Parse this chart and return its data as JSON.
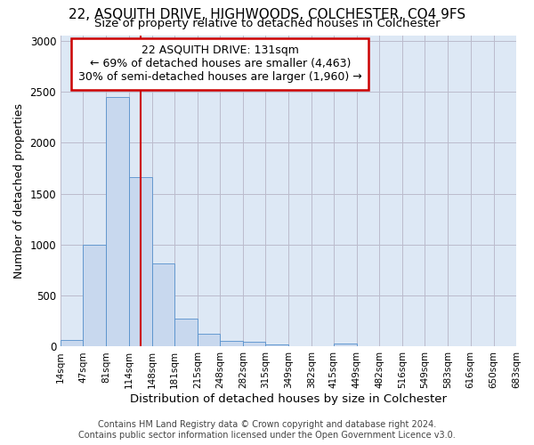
{
  "title": "22, ASQUITH DRIVE, HIGHWOODS, COLCHESTER, CO4 9FS",
  "subtitle": "Size of property relative to detached houses in Colchester",
  "xlabel": "Distribution of detached houses by size in Colchester",
  "ylabel": "Number of detached properties",
  "footer_line1": "Contains HM Land Registry data © Crown copyright and database right 2024.",
  "footer_line2": "Contains public sector information licensed under the Open Government Licence v3.0.",
  "annotation_line1": "22 ASQUITH DRIVE: 131sqm",
  "annotation_line2": "← 69% of detached houses are smaller (4,463)",
  "annotation_line3": "30% of semi-detached houses are larger (1,960) →",
  "property_size": 131,
  "bin_edges": [
    14,
    47,
    81,
    114,
    148,
    181,
    215,
    248,
    282,
    315,
    349,
    382,
    415,
    449,
    482,
    516,
    549,
    583,
    616,
    650,
    683
  ],
  "bin_counts": [
    65,
    1000,
    2450,
    1665,
    820,
    275,
    130,
    55,
    45,
    20,
    0,
    0,
    30,
    0,
    0,
    0,
    0,
    0,
    0,
    0
  ],
  "bar_color": "#c8d8ee",
  "bar_edge_color": "#5590cc",
  "vline_color": "#cc0000",
  "grid_color": "#bbbbcc",
  "bg_color": "#dde8f5",
  "annotation_box_color": "#cc0000",
  "ylim": [
    0,
    3050
  ],
  "yticks": [
    0,
    500,
    1000,
    1500,
    2000,
    2500,
    3000
  ],
  "title_fontsize": 11,
  "subtitle_fontsize": 9.5,
  "ylabel_fontsize": 9,
  "xlabel_fontsize": 9.5,
  "annotation_fontsize": 9,
  "footer_fontsize": 7
}
